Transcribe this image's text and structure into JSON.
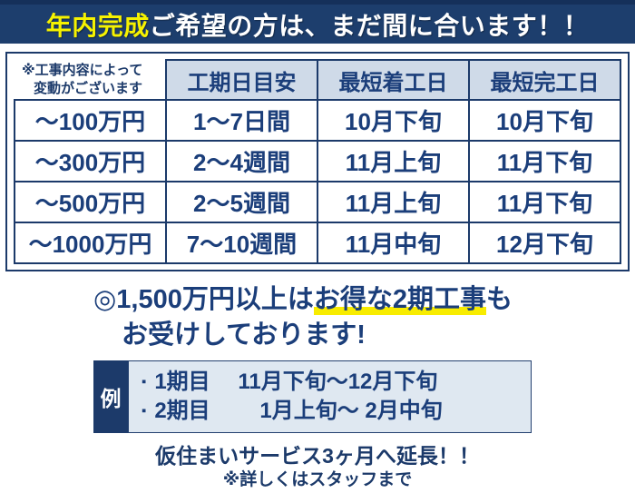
{
  "banner": {
    "highlight": "年内完成",
    "rest": "ご希望の方は、まだ間に合います！！"
  },
  "table": {
    "note_line1": "※工事内容によって",
    "note_line2": "変動がございます",
    "headers": [
      "工期日目安",
      "最短着工日",
      "最短完工日"
    ],
    "rows": [
      {
        "label": "～100万円",
        "duration": "1～7日間",
        "start": "10月下旬",
        "finish": "10月下旬"
      },
      {
        "label": "～300万円",
        "duration": "2～4週間",
        "start": "11月上旬",
        "finish": "11月下旬"
      },
      {
        "label": "～500万円",
        "duration": "2～5週間",
        "start": "11月上旬",
        "finish": "11月下旬"
      },
      {
        "label": "～1000万円",
        "duration": "7～10週間",
        "start": "11月中旬",
        "finish": "12月下旬"
      }
    ]
  },
  "promo": {
    "prefix": "◎1,500万円以上は",
    "highlighted": "お得な2期工事",
    "suffix": "も",
    "line2": "お受けしております!"
  },
  "example": {
    "tab": "例",
    "bullet": "▪",
    "items": [
      "1期目　 11月下旬～12月下旬",
      "2期目　　 1月上旬～ 2月中旬"
    ]
  },
  "footer": {
    "line1": "仮住まいサービス3ヶ月へ延長！！",
    "line2": "※詳しくはスタッフまで"
  },
  "colors": {
    "navy": "#1c3a6a",
    "banner_navy": "#1d3e6d",
    "header_cell_blue": "#cfdae8",
    "panel_blue": "#dfe8f1",
    "yellow": "#f6f200",
    "marker_yellow": "#f8ec00"
  }
}
